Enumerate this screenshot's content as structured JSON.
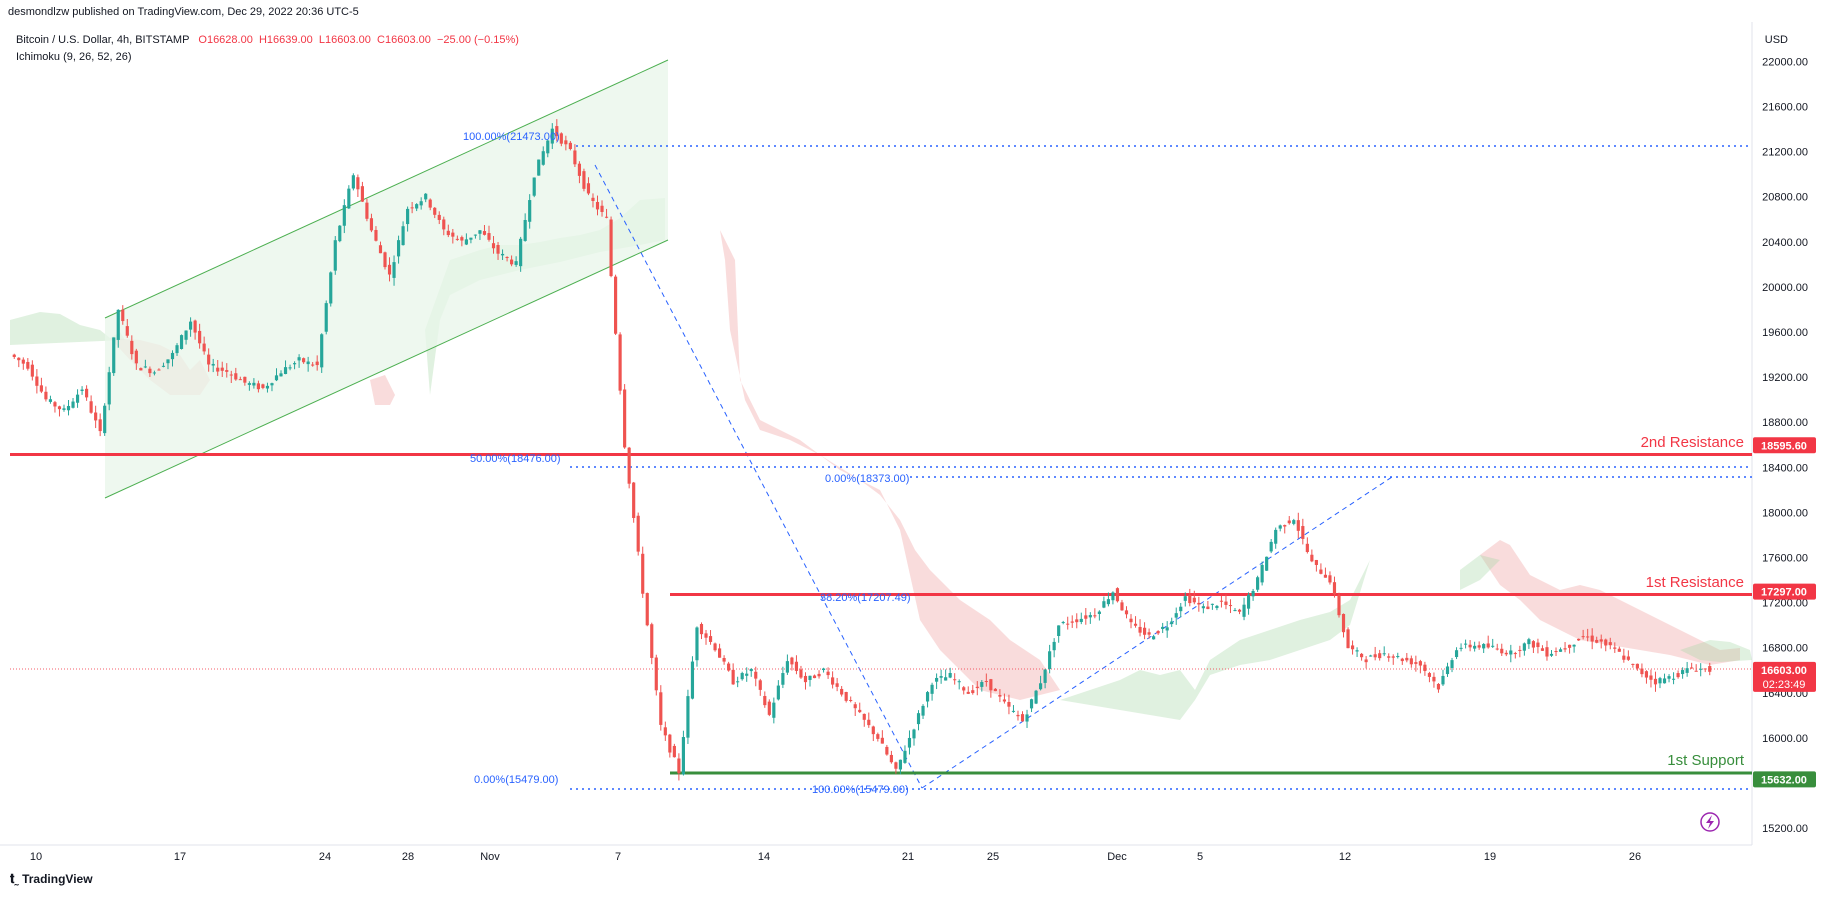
{
  "header": {
    "publisher": "desmondlzw published on TradingView.com, Dec 29, 2022 20:36 UTC-5",
    "symbol": "Bitcoin / U.S. Dollar, 4h, BITSTAMP",
    "open": "O16628.00",
    "high": "H16639.00",
    "low": "L16603.00",
    "close": "C16603.00",
    "change": "−25.00 (−0.15%)",
    "indicator": "Ichimoku (9, 26, 52, 26)",
    "currency": "USD"
  },
  "brand": "TradingView",
  "colors": {
    "bull": "#26a69a",
    "bear": "#ef5350",
    "resistance": "#f23645",
    "support": "#388e3c",
    "fib": "#2962ff",
    "channel": "#4caf50"
  },
  "chart_data": {
    "type": "candlestick",
    "x_axis_labels": [
      "10",
      "17",
      "24",
      "28",
      "Nov",
      "7",
      "14",
      "21",
      "25",
      "Dec",
      "5",
      "12",
      "19",
      "26"
    ],
    "y_axis_labels": [
      "22000.00",
      "21600.00",
      "21200.00",
      "20800.00",
      "20400.00",
      "20000.00",
      "19600.00",
      "19200.00",
      "18800.00",
      "18400.00",
      "18000.00",
      "17600.00",
      "17200.00",
      "16800.00",
      "16400.00",
      "16000.00",
      "15200.00"
    ],
    "ylim": [
      15050,
      22350
    ],
    "price_tags": [
      {
        "value": 18595.6,
        "label": "18595.60",
        "color": "#f23645"
      },
      {
        "value": 17297.0,
        "label": "17297.00",
        "color": "#f23645"
      },
      {
        "value": 16603.0,
        "label": "16603.00",
        "sub": "02:23:49",
        "color": "#f23645"
      },
      {
        "value": 15632.0,
        "label": "15632.00",
        "color": "#388e3c"
      }
    ],
    "levels": [
      {
        "name": "2nd Resistance",
        "value": 18595.6,
        "color": "#f23645"
      },
      {
        "name": "1st Resistance",
        "value": 17297.0,
        "color": "#f23645"
      },
      {
        "name": "1st Support",
        "value": 15632.0,
        "color": "#388e3c"
      }
    ],
    "fib_labels": [
      "100.00%(21473.00)",
      "50.00%(18476.00)",
      "0.00%(15479.00)",
      "0.00%(18373.00)",
      "38.20%(17207.49)",
      "100.00%(15479.00)"
    ],
    "last_price": 16603.0,
    "candles_ohlc_sample": [
      [
        19400,
        19300
      ],
      [
        19300,
        19000
      ],
      [
        19000,
        18900
      ],
      [
        18900,
        19100
      ],
      [
        19100,
        18700
      ],
      [
        18700,
        19800
      ],
      [
        19800,
        19300
      ],
      [
        19300,
        19250
      ],
      [
        19250,
        19400
      ],
      [
        19400,
        19700
      ],
      [
        19700,
        19300
      ],
      [
        19300,
        19250
      ],
      [
        19250,
        19150
      ],
      [
        19150,
        19100
      ],
      [
        19100,
        19250
      ],
      [
        19250,
        19350
      ],
      [
        19350,
        19300
      ],
      [
        19300,
        20400
      ],
      [
        20400,
        21000
      ],
      [
        21000,
        20500
      ],
      [
        20500,
        20100
      ],
      [
        20100,
        20700
      ],
      [
        20700,
        20800
      ],
      [
        20800,
        20500
      ],
      [
        20500,
        20400
      ],
      [
        20400,
        20500
      ],
      [
        20500,
        20300
      ],
      [
        20300,
        20200
      ],
      [
        20200,
        21000
      ],
      [
        21000,
        21400
      ],
      [
        21400,
        21200
      ],
      [
        21200,
        20800
      ],
      [
        20800,
        20600
      ],
      [
        20600,
        18600
      ],
      [
        18600,
        17300
      ],
      [
        17300,
        16100
      ],
      [
        16100,
        15700
      ],
      [
        15700,
        17000
      ],
      [
        17000,
        16800
      ],
      [
        16800,
        16500
      ],
      [
        16500,
        16600
      ],
      [
        16600,
        16200
      ],
      [
        16200,
        16700
      ],
      [
        16700,
        16500
      ],
      [
        16500,
        16600
      ],
      [
        16600,
        16400
      ],
      [
        16400,
        16200
      ],
      [
        16200,
        16000
      ],
      [
        16000,
        15700
      ],
      [
        15700,
        16100
      ],
      [
        16100,
        16500
      ],
      [
        16500,
        16550
      ],
      [
        16550,
        16400
      ],
      [
        16400,
        16500
      ],
      [
        16500,
        16300
      ],
      [
        16300,
        16150
      ],
      [
        16150,
        16500
      ],
      [
        16500,
        17000
      ],
      [
        17000,
        17050
      ],
      [
        17050,
        17100
      ],
      [
        17100,
        17300
      ],
      [
        17300,
        17000
      ],
      [
        17000,
        16900
      ],
      [
        16900,
        17000
      ],
      [
        17000,
        17250
      ],
      [
        17250,
        17150
      ],
      [
        17150,
        17200
      ],
      [
        17200,
        17100
      ],
      [
        17100,
        17400
      ],
      [
        17400,
        17850
      ],
      [
        17850,
        17950
      ],
      [
        17950,
        17550
      ],
      [
        17550,
        17400
      ],
      [
        17400,
        16800
      ],
      [
        16800,
        16700
      ],
      [
        16700,
        16750
      ],
      [
        16750,
        16700
      ],
      [
        16700,
        16650
      ],
      [
        16650,
        16450
      ],
      [
        16450,
        16800
      ],
      [
        16800,
        16820
      ],
      [
        16820,
        16800
      ],
      [
        16800,
        16750
      ],
      [
        16750,
        16850
      ],
      [
        16850,
        16750
      ],
      [
        16750,
        16800
      ],
      [
        16800,
        16900
      ],
      [
        16900,
        16850
      ],
      [
        16850,
        16750
      ],
      [
        16750,
        16600
      ],
      [
        16600,
        16500
      ],
      [
        16500,
        16550
      ],
      [
        16550,
        16620
      ],
      [
        16620,
        16603
      ]
    ]
  }
}
